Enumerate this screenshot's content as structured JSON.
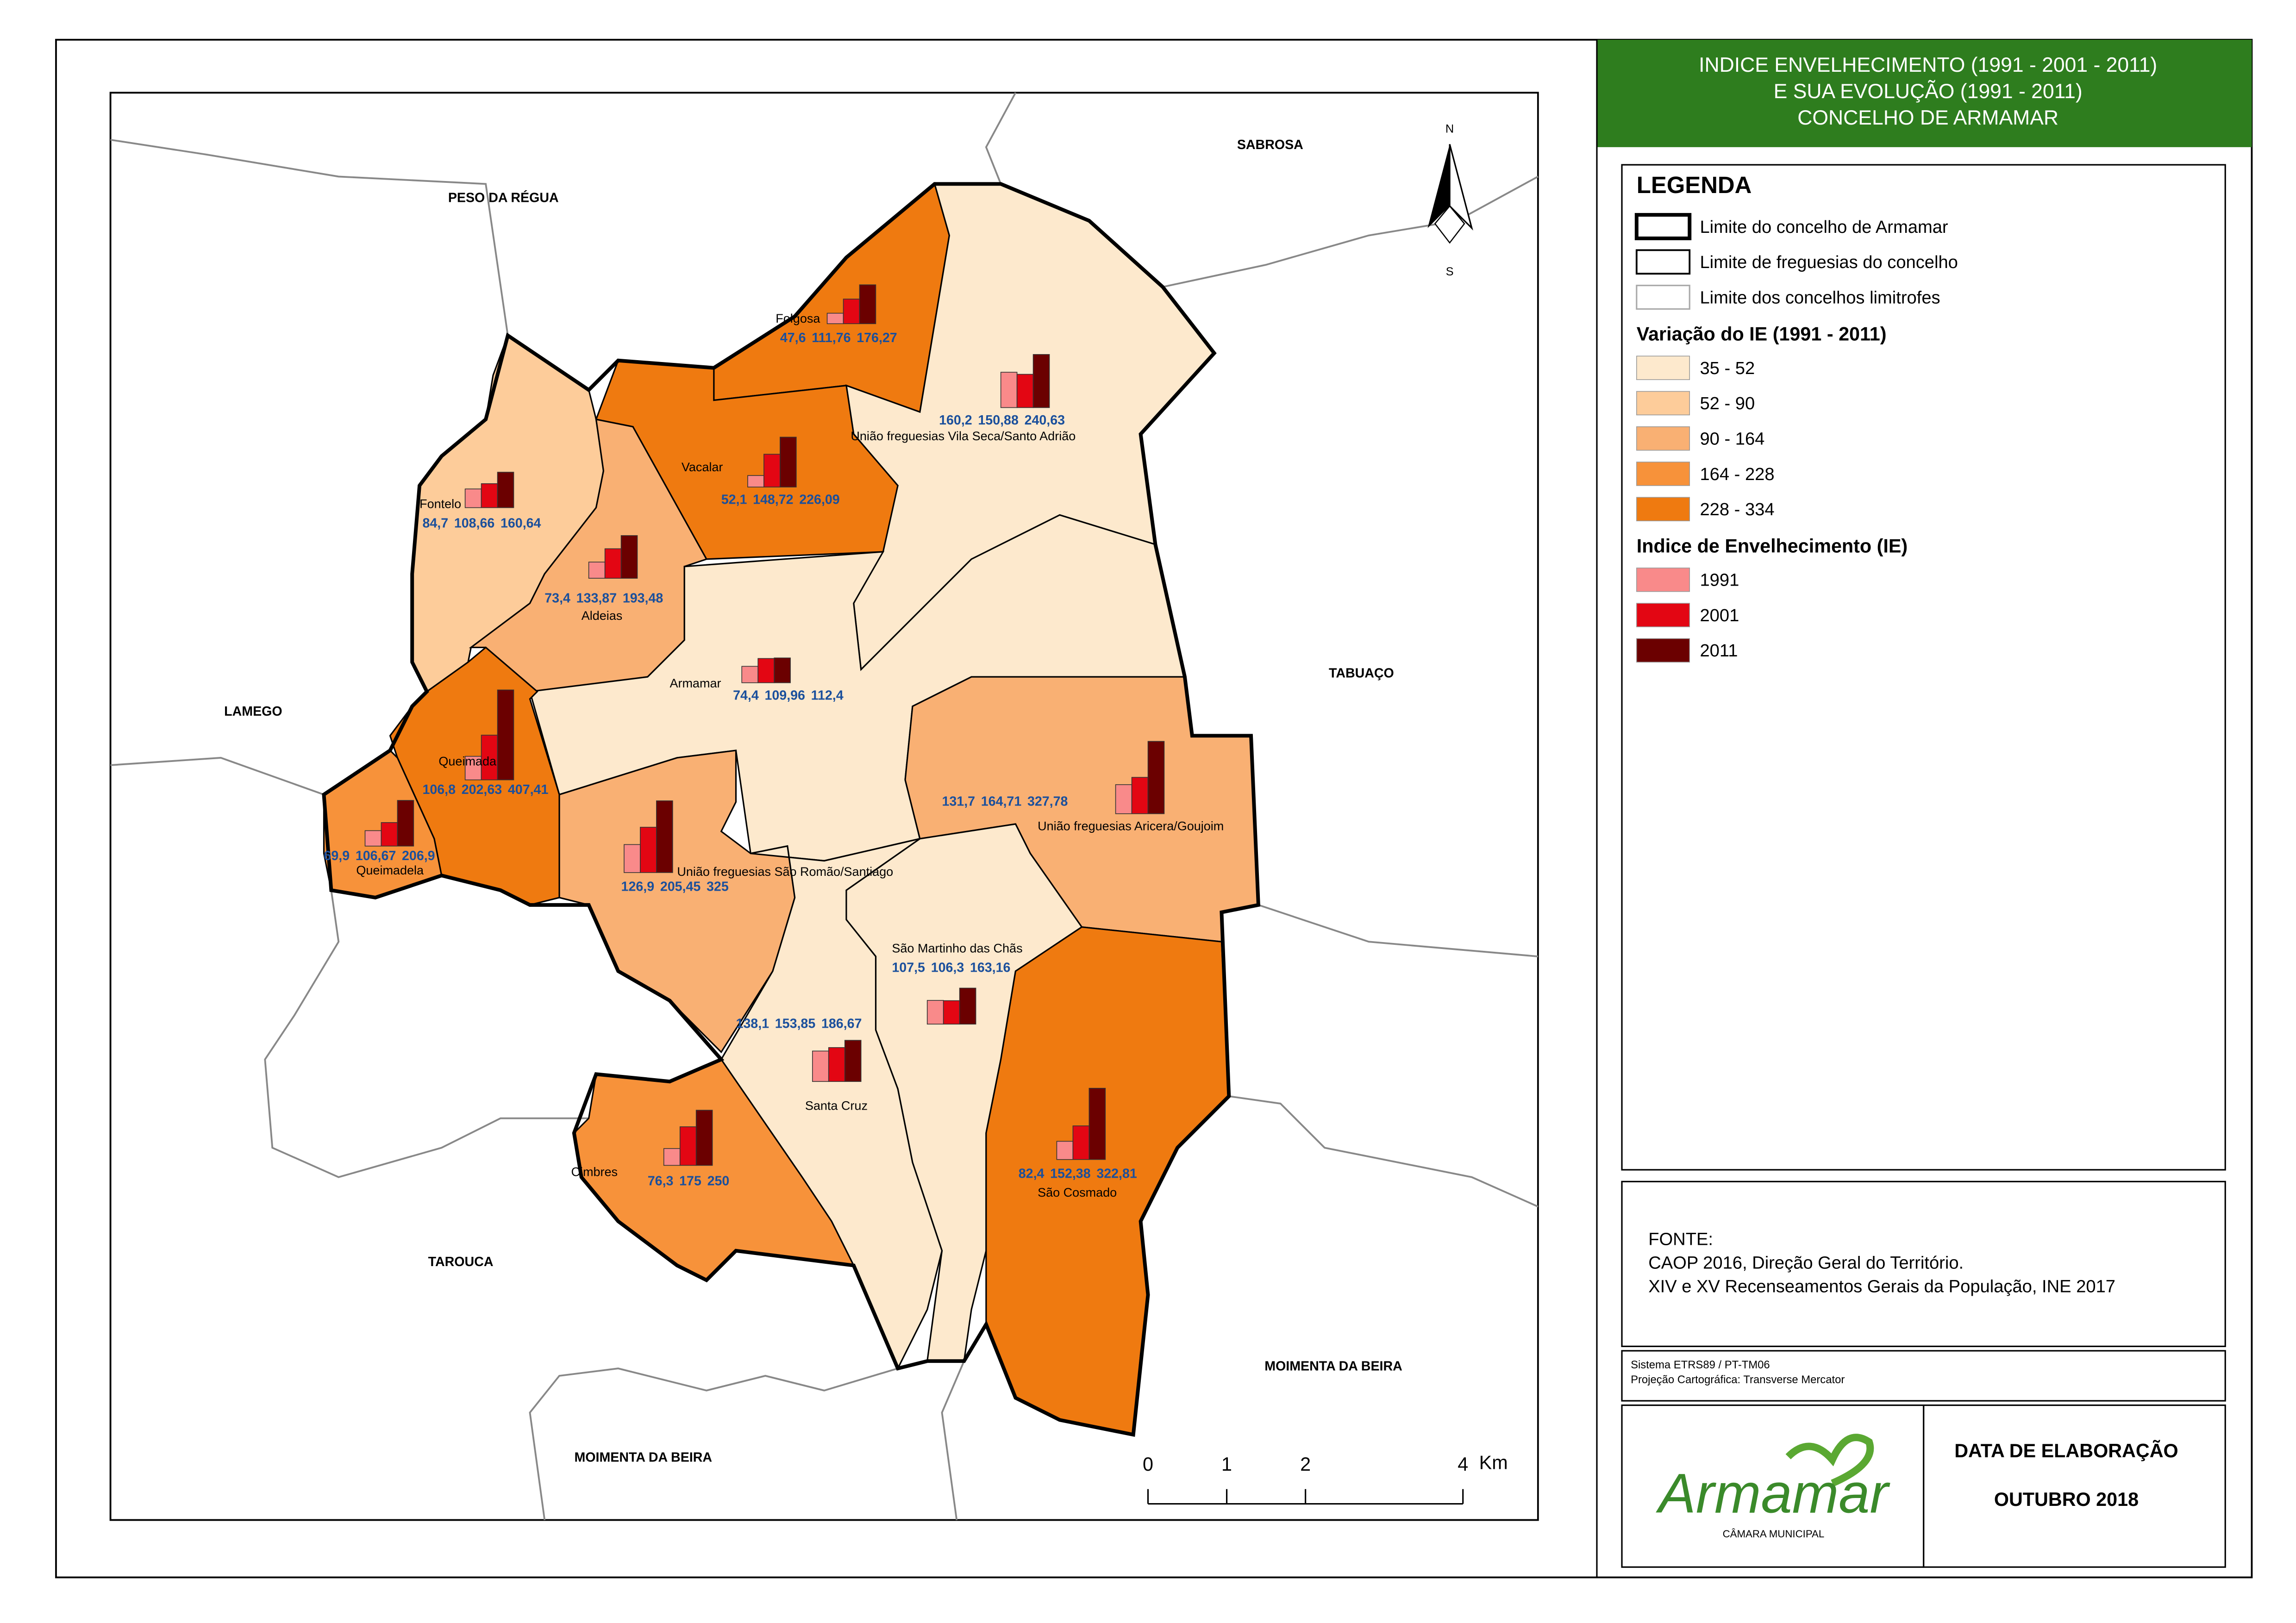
{
  "title": [
    "INDICE ENVELHECIMENTO (1991 - 2001 - 2011)",
    "E SUA EVOLUÇÃO (1991 - 2011)",
    "CONCELHO DE ARMAMAR"
  ],
  "legend": {
    "title": "LEGENDA",
    "boundaries": [
      "Limite do concelho de Armamar",
      "Limite de freguesias do concelho",
      "Limite dos concelhos limitrofes"
    ],
    "variation_title": "Variação do IE (1991 - 2011)",
    "classes": [
      {
        "label": "35 - 52",
        "color": "#fde9cd"
      },
      {
        "label": "52 - 90",
        "color": "#fdcc9a"
      },
      {
        "label": "90 - 164",
        "color": "#f9b073"
      },
      {
        "label": "164 - 228",
        "color": "#f7923a"
      },
      {
        "label": "228 - 334",
        "color": "#ef7a10"
      }
    ],
    "index_title": "Indice de Envelhecimento (IE)",
    "years": [
      {
        "label": "1991",
        "color": "#f98a8a"
      },
      {
        "label": "2001",
        "color": "#e30613"
      },
      {
        "label": "2011",
        "color": "#6b0000"
      }
    ]
  },
  "neighbours": [
    "PESO DA RÉGUA",
    "SABROSA",
    "LAMEGO",
    "TABUAÇO",
    "TAROUCA",
    "MOIMENTA DA BEIRA",
    "MOIMENTA DA BEIRA"
  ],
  "freguesias": [
    {
      "name": "Folgosa",
      "values": [
        47.6,
        111.76,
        176.27
      ],
      "value_labels": [
        "47,6",
        "111,76",
        "176,27"
      ],
      "fill": "#ef7a10"
    },
    {
      "name": "União freguesias Vila Seca/Santo Adrião",
      "values": [
        160.2,
        150.88,
        240.63
      ],
      "value_labels": [
        "160,2",
        "150,88",
        "240,63"
      ],
      "fill": "#fde9cd"
    },
    {
      "name": "Vacalar",
      "values": [
        52.1,
        148.72,
        226.09
      ],
      "value_labels": [
        "52,1",
        "148,72",
        "226,09"
      ],
      "fill": "#ef7a10"
    },
    {
      "name": "Fontelo",
      "values": [
        84.7,
        108.66,
        160.64
      ],
      "value_labels": [
        "84,7",
        "108,66",
        "160,64"
      ],
      "fill": "#fdcc9a"
    },
    {
      "name": "Aldeias",
      "values": [
        73.4,
        133.87,
        193.48
      ],
      "value_labels": [
        "73,4",
        "133,87",
        "193,48"
      ],
      "fill": "#f9b073"
    },
    {
      "name": "Armamar",
      "values": [
        74.4,
        109.96,
        112.4
      ],
      "value_labels": [
        "74,4",
        "109,96",
        "112,4"
      ],
      "fill": "#fde9cd"
    },
    {
      "name": "Queimada",
      "values": [
        106.8,
        202.63,
        407.41
      ],
      "value_labels": [
        "106,8",
        "202,63",
        "407,41"
      ],
      "fill": "#ef7a10"
    },
    {
      "name": "Queimadela",
      "values": [
        69.9,
        106.67,
        206.9
      ],
      "value_labels": [
        "69,9",
        "106,67",
        "206,9"
      ],
      "fill": "#f7923a"
    },
    {
      "name": "União freguesias São Romão/Santiago",
      "values": [
        126.9,
        205.45,
        325
      ],
      "value_labels": [
        "126,9",
        "205,45",
        "325"
      ],
      "fill": "#f9b073"
    },
    {
      "name": "União freguesias Aricera/Goujoim",
      "values": [
        131.7,
        164.71,
        327.78
      ],
      "value_labels": [
        "131,7",
        "164,71",
        "327,78"
      ],
      "fill": "#f9b073"
    },
    {
      "name": "São Martinho das Chãs",
      "values": [
        107.5,
        106.3,
        163.16
      ],
      "value_labels": [
        "107,5",
        "106,3",
        "163,16"
      ],
      "fill": "#fde9cd"
    },
    {
      "name": "Santa Cruz",
      "values": [
        138.1,
        153.85,
        186.67
      ],
      "value_labels": [
        "138,1",
        "153,85",
        "186,67"
      ],
      "fill": "#fde9cd"
    },
    {
      "name": "Cimbres",
      "values": [
        76.3,
        175,
        250
      ],
      "value_labels": [
        "76,3",
        "175",
        "250"
      ],
      "fill": "#f7923a"
    },
    {
      "name": "São Cosmado",
      "values": [
        82.4,
        152.38,
        322.81
      ],
      "value_labels": [
        "82,4",
        "152,38",
        "322,81"
      ],
      "fill": "#ef7a10"
    }
  ],
  "scale_bar": {
    "ticks": [
      0,
      1,
      2,
      4
    ],
    "unit": "Km"
  },
  "north": {
    "n": "N",
    "s": "S"
  },
  "source": {
    "heading": "FONTE:",
    "lines": [
      "CAOP 2016, Direção Geral do Território.",
      "XIV e XV Recenseamentos Gerais da População, INE 2017"
    ]
  },
  "projection": [
    "Sistema ETRS89 / PT-TM06",
    "Projeção Cartográfica: Transverse Mercator"
  ],
  "logo": {
    "name": "Armamar",
    "subtitle": "CÂMARA MUNICIPAL"
  },
  "date": {
    "label": "DATA DE ELABORAÇÃO",
    "value": "OUTUBRO 2018"
  }
}
